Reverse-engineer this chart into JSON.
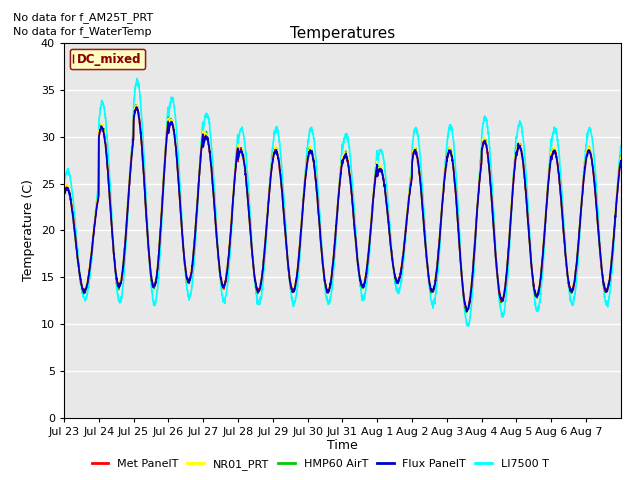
{
  "title": "Temperatures",
  "xlabel": "Time",
  "ylabel": "Temperature (C)",
  "ylim": [
    0,
    40
  ],
  "yticks": [
    0,
    5,
    10,
    15,
    20,
    25,
    30,
    35,
    40
  ],
  "annotations": [
    "No data for f_AM25T_PRT",
    "No data for f_WaterTemp"
  ],
  "legend_label": "DC_mixed",
  "bg_color": "#e8e8e8",
  "outer_bg": "#ffffff",
  "lines": [
    {
      "label": "Met PanelT",
      "color": "#ff0000"
    },
    {
      "label": "NR01_PRT",
      "color": "#ffff00"
    },
    {
      "label": "HMP60 AirT",
      "color": "#00cc00"
    },
    {
      "label": "Flux PanelT",
      "color": "#0000cc"
    },
    {
      "label": "LI7500 T",
      "color": "#00ffff"
    }
  ],
  "x_tick_labels": [
    "Jul 23",
    "Jul 24",
    "Jul 25",
    "Jul 26",
    "Jul 27",
    "Jul 28",
    "Jul 29",
    "Jul 30",
    "Jul 31",
    "Aug 1",
    "Aug 2",
    "Aug 3",
    "Aug 4",
    "Aug 5",
    "Aug 6",
    "Aug 7"
  ],
  "n_days": 16,
  "points_per_day": 144,
  "day_means": [
    19.0,
    22.5,
    23.5,
    23.0,
    22.0,
    21.0,
    21.0,
    21.0,
    21.0,
    20.5,
    21.0,
    20.0,
    21.0,
    21.0,
    21.0,
    21.0
  ],
  "day_amps": [
    5.5,
    8.5,
    9.5,
    8.5,
    8.0,
    7.5,
    7.5,
    7.5,
    7.0,
    6.0,
    7.5,
    8.5,
    8.5,
    8.0,
    7.5,
    7.5
  ],
  "deep_dip_day": 10,
  "deep_dip_min": 7.5,
  "aug1_dip_day": 9,
  "aug1_dip_min": 10.5
}
